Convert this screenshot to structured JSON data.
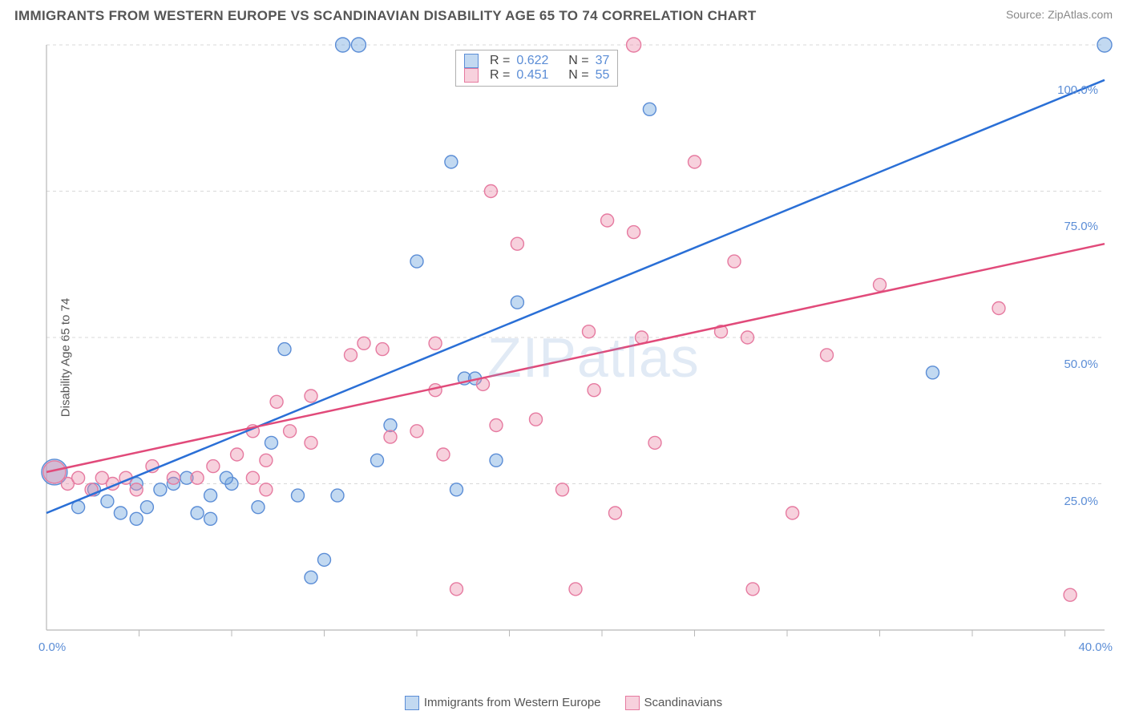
{
  "header": {
    "title": "IMMIGRANTS FROM WESTERN EUROPE VS SCANDINAVIAN DISABILITY AGE 65 TO 74 CORRELATION CHART",
    "source_prefix": "Source: ",
    "source_name": "ZipAtlas.com"
  },
  "y_axis_label": "Disability Age 65 to 74",
  "watermark": "ZIPatlas",
  "chart": {
    "type": "scatter",
    "background_color": "#ffffff",
    "grid_color": "#d8d8d8",
    "border_color": "#b8b8b8",
    "xlim": [
      0,
      40
    ],
    "ylim": [
      0,
      100
    ],
    "x_ticks": [
      0,
      40
    ],
    "x_tick_labels": [
      "0.0%",
      "40.0%"
    ],
    "y_ticks": [
      25,
      50,
      75,
      100
    ],
    "y_tick_labels": [
      "25.0%",
      "50.0%",
      "75.0%",
      "100.0%"
    ],
    "minor_x_ticks": [
      3.5,
      7,
      10.5,
      14,
      17.5,
      21,
      24.5,
      28,
      31.5,
      35,
      38.5
    ],
    "series": [
      {
        "name": "Immigrants from Western Europe",
        "short": "blue",
        "marker_fill": "rgba(120,170,225,0.45)",
        "marker_stroke": "#5b8dd6",
        "line_color": "#2a6fd6",
        "R": "0.622",
        "N": "37",
        "line": {
          "x1": 0,
          "y1": 20,
          "x2": 40,
          "y2": 94
        },
        "points": [
          {
            "x": 0.3,
            "y": 27,
            "r": 16
          },
          {
            "x": 1.2,
            "y": 21,
            "r": 8
          },
          {
            "x": 1.8,
            "y": 24,
            "r": 8
          },
          {
            "x": 2.3,
            "y": 22,
            "r": 8
          },
          {
            "x": 2.8,
            "y": 20,
            "r": 8
          },
          {
            "x": 3.4,
            "y": 19,
            "r": 8
          },
          {
            "x": 3.4,
            "y": 25,
            "r": 8
          },
          {
            "x": 3.8,
            "y": 21,
            "r": 8
          },
          {
            "x": 4.3,
            "y": 24,
            "r": 8
          },
          {
            "x": 4.8,
            "y": 25,
            "r": 8
          },
          {
            "x": 5.3,
            "y": 26,
            "r": 8
          },
          {
            "x": 5.7,
            "y": 20,
            "r": 8
          },
          {
            "x": 6.2,
            "y": 23,
            "r": 8
          },
          {
            "x": 6.2,
            "y": 19,
            "r": 8
          },
          {
            "x": 7.0,
            "y": 25,
            "r": 8
          },
          {
            "x": 8.0,
            "y": 21,
            "r": 8
          },
          {
            "x": 8.5,
            "y": 32,
            "r": 8
          },
          {
            "x": 9.0,
            "y": 48,
            "r": 8
          },
          {
            "x": 9.5,
            "y": 23,
            "r": 8
          },
          {
            "x": 10,
            "y": 9,
            "r": 8
          },
          {
            "x": 10.5,
            "y": 12,
            "r": 8
          },
          {
            "x": 11,
            "y": 23,
            "r": 8
          },
          {
            "x": 11.2,
            "y": 100,
            "r": 9
          },
          {
            "x": 11.8,
            "y": 100,
            "r": 9
          },
          {
            "x": 12.5,
            "y": 29,
            "r": 8
          },
          {
            "x": 13,
            "y": 35,
            "r": 8
          },
          {
            "x": 14.0,
            "y": 63,
            "r": 8
          },
          {
            "x": 15.3,
            "y": 80,
            "r": 8
          },
          {
            "x": 15.5,
            "y": 24,
            "r": 8
          },
          {
            "x": 15.8,
            "y": 43,
            "r": 8
          },
          {
            "x": 16.2,
            "y": 43,
            "r": 8
          },
          {
            "x": 17,
            "y": 29,
            "r": 8
          },
          {
            "x": 17.8,
            "y": 56,
            "r": 8
          },
          {
            "x": 22.8,
            "y": 89,
            "r": 8
          },
          {
            "x": 33.5,
            "y": 44,
            "r": 8
          },
          {
            "x": 40,
            "y": 100,
            "r": 9
          },
          {
            "x": 6.8,
            "y": 26,
            "r": 8
          }
        ]
      },
      {
        "name": "Scandinavians",
        "short": "pink",
        "marker_fill": "rgba(235,140,170,0.40)",
        "marker_stroke": "#e67aa0",
        "line_color": "#e14a7a",
        "R": "0.451",
        "N": "55",
        "line": {
          "x1": 0,
          "y1": 27,
          "x2": 40,
          "y2": 66
        },
        "points": [
          {
            "x": 0.3,
            "y": 27,
            "r": 14
          },
          {
            "x": 0.8,
            "y": 25,
            "r": 8
          },
          {
            "x": 1.2,
            "y": 26,
            "r": 8
          },
          {
            "x": 1.7,
            "y": 24,
            "r": 8
          },
          {
            "x": 2.1,
            "y": 26,
            "r": 8
          },
          {
            "x": 2.5,
            "y": 25,
            "r": 8
          },
          {
            "x": 3.0,
            "y": 26,
            "r": 8
          },
          {
            "x": 3.4,
            "y": 24,
            "r": 8
          },
          {
            "x": 4.0,
            "y": 28,
            "r": 8
          },
          {
            "x": 4.8,
            "y": 26,
            "r": 8
          },
          {
            "x": 5.7,
            "y": 26,
            "r": 8
          },
          {
            "x": 6.3,
            "y": 28,
            "r": 8
          },
          {
            "x": 7.2,
            "y": 30,
            "r": 8
          },
          {
            "x": 7.8,
            "y": 26,
            "r": 8
          },
          {
            "x": 7.8,
            "y": 34,
            "r": 8
          },
          {
            "x": 8.3,
            "y": 29,
            "r": 8
          },
          {
            "x": 8.3,
            "y": 24,
            "r": 8
          },
          {
            "x": 8.7,
            "y": 39,
            "r": 8
          },
          {
            "x": 9.2,
            "y": 34,
            "r": 8
          },
          {
            "x": 10.0,
            "y": 40,
            "r": 8
          },
          {
            "x": 10.0,
            "y": 32,
            "r": 8
          },
          {
            "x": 11.5,
            "y": 47,
            "r": 8
          },
          {
            "x": 12.0,
            "y": 49,
            "r": 8
          },
          {
            "x": 12.7,
            "y": 48,
            "r": 8
          },
          {
            "x": 13.0,
            "y": 33,
            "r": 8
          },
          {
            "x": 14.0,
            "y": 34,
            "r": 8
          },
          {
            "x": 14.7,
            "y": 41,
            "r": 8
          },
          {
            "x": 15.0,
            "y": 30,
            "r": 8
          },
          {
            "x": 15.5,
            "y": 7,
            "r": 8
          },
          {
            "x": 16.5,
            "y": 42,
            "r": 8
          },
          {
            "x": 16.8,
            "y": 75,
            "r": 8
          },
          {
            "x": 17.0,
            "y": 35,
            "r": 8
          },
          {
            "x": 17.8,
            "y": 66,
            "r": 8
          },
          {
            "x": 18.5,
            "y": 36,
            "r": 8
          },
          {
            "x": 19.5,
            "y": 24,
            "r": 8
          },
          {
            "x": 20,
            "y": 7,
            "r": 8
          },
          {
            "x": 20.5,
            "y": 51,
            "r": 8
          },
          {
            "x": 20.7,
            "y": 41,
            "r": 8
          },
          {
            "x": 21.2,
            "y": 70,
            "r": 8
          },
          {
            "x": 21.5,
            "y": 20,
            "r": 8
          },
          {
            "x": 22.2,
            "y": 68,
            "r": 8
          },
          {
            "x": 22.2,
            "y": 100,
            "r": 9
          },
          {
            "x": 22.5,
            "y": 50,
            "r": 8
          },
          {
            "x": 23.0,
            "y": 32,
            "r": 8
          },
          {
            "x": 24.5,
            "y": 80,
            "r": 8
          },
          {
            "x": 25.5,
            "y": 51,
            "r": 8
          },
          {
            "x": 26.0,
            "y": 63,
            "r": 8
          },
          {
            "x": 26.5,
            "y": 50,
            "r": 8
          },
          {
            "x": 26.7,
            "y": 7,
            "r": 8
          },
          {
            "x": 28.2,
            "y": 20,
            "r": 8
          },
          {
            "x": 29.5,
            "y": 47,
            "r": 8
          },
          {
            "x": 31.5,
            "y": 59,
            "r": 8
          },
          {
            "x": 36.0,
            "y": 55,
            "r": 8
          },
          {
            "x": 38.7,
            "y": 6,
            "r": 8
          },
          {
            "x": 14.7,
            "y": 49,
            "r": 8
          }
        ]
      }
    ]
  },
  "bottom_legend": {
    "series1": "Immigrants from Western Europe",
    "series2": "Scandinavians"
  },
  "stat_legend": {
    "r_label": "R =",
    "n_label": "N ="
  }
}
